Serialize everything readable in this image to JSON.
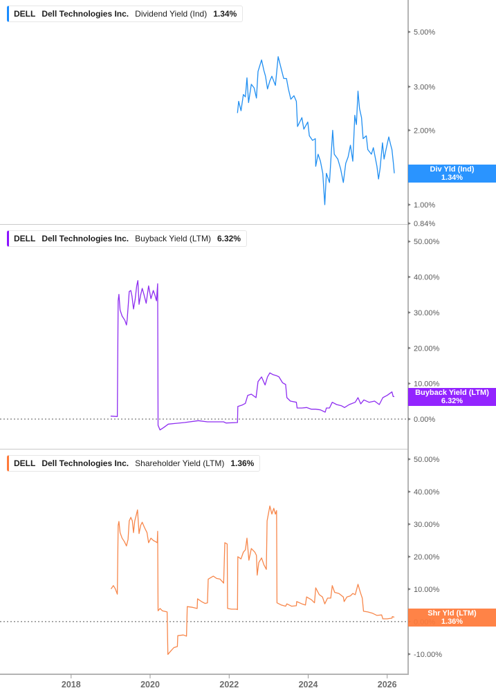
{
  "x_axis": {
    "ticks": [
      {
        "year": 2018,
        "label": "2018"
      },
      {
        "year": 2020,
        "label": "2020"
      },
      {
        "year": 2022,
        "label": "2022"
      },
      {
        "year": 2024,
        "label": "2024"
      },
      {
        "year": 2026,
        "label": "2026"
      }
    ]
  },
  "panels": [
    {
      "color": "#1a8cff",
      "legend": {
        "ticker": "DELL",
        "company": "Dell Technologies Inc.",
        "metric": "Dividend Yield (Ind)",
        "value": "1.34%"
      },
      "tag": {
        "label": "Div Yld (Ind)",
        "value": "1.34%"
      }
    },
    {
      "color": "#8b14ff",
      "legend": {
        "ticker": "DELL",
        "company": "Dell Technologies Inc.",
        "metric": "Buyback Yield (LTM)",
        "value": "6.32%"
      },
      "tag": {
        "label": "Buyback Yield (LTM)",
        "value": "6.32%"
      }
    },
    {
      "color": "#ff7a3a",
      "legend": {
        "ticker": "DELL",
        "company": "Dell Technologies Inc.",
        "metric": "Shareholder Yield (LTM)",
        "value": "1.36%"
      },
      "tag": {
        "label": "Shr Yld (LTM)",
        "value": "1.36%"
      }
    }
  ],
  "chart_data": [
    {
      "type": "line",
      "title": "DELL Dell Technologies Inc. Dividend Yield (Ind)",
      "series_name": "Div Yld (Ind)",
      "last_value": 1.34,
      "line_color": "#1f8ef1",
      "yscale": "log",
      "xlim": [
        2016.2,
        2026.53
      ],
      "ylim": [
        0.835,
        6.73
      ],
      "zero_line": false,
      "yticks": [
        {
          "value": 5,
          "label": "5.00%"
        },
        {
          "value": 3,
          "label": "3.00%"
        },
        {
          "value": 2,
          "label": "2.00%"
        },
        {
          "value": 1,
          "label": "1.00%"
        },
        {
          "value": 0.84,
          "label": "0.84%"
        }
      ],
      "points": [
        [
          2022.21,
          2.35
        ],
        [
          2022.24,
          2.62
        ],
        [
          2022.3,
          2.4
        ],
        [
          2022.36,
          2.79
        ],
        [
          2022.41,
          2.73
        ],
        [
          2022.45,
          3.26
        ],
        [
          2022.49,
          2.59
        ],
        [
          2022.56,
          3.07
        ],
        [
          2022.63,
          2.97
        ],
        [
          2022.69,
          2.7
        ],
        [
          2022.73,
          3.46
        ],
        [
          2022.82,
          3.85
        ],
        [
          2022.88,
          3.49
        ],
        [
          2022.92,
          3.31
        ],
        [
          2022.97,
          2.94
        ],
        [
          2023.03,
          3.17
        ],
        [
          2023.08,
          3.31
        ],
        [
          2023.17,
          3.04
        ],
        [
          2023.24,
          3.97
        ],
        [
          2023.32,
          3.53
        ],
        [
          2023.38,
          3.24
        ],
        [
          2023.45,
          3.24
        ],
        [
          2023.5,
          2.94
        ],
        [
          2023.56,
          2.67
        ],
        [
          2023.64,
          2.76
        ],
        [
          2023.7,
          2.62
        ],
        [
          2023.73,
          2.07
        ],
        [
          2023.84,
          2.25
        ],
        [
          2023.89,
          2.02
        ],
        [
          2023.99,
          2.16
        ],
        [
          2024.03,
          1.9
        ],
        [
          2024.11,
          1.82
        ],
        [
          2024.18,
          1.85
        ],
        [
          2024.19,
          1.43
        ],
        [
          2024.25,
          1.6
        ],
        [
          2024.31,
          1.5
        ],
        [
          2024.37,
          1.34
        ],
        [
          2024.42,
          1.0
        ],
        [
          2024.46,
          1.34
        ],
        [
          2024.54,
          1.23
        ],
        [
          2024.62,
          2.0
        ],
        [
          2024.66,
          1.6
        ],
        [
          2024.75,
          1.53
        ],
        [
          2024.82,
          1.4
        ],
        [
          2024.89,
          1.23
        ],
        [
          2024.95,
          1.47
        ],
        [
          2025.01,
          1.56
        ],
        [
          2025.07,
          1.74
        ],
        [
          2025.13,
          1.5
        ],
        [
          2025.18,
          2.3
        ],
        [
          2025.22,
          2.11
        ],
        [
          2025.26,
          2.88
        ],
        [
          2025.3,
          2.45
        ],
        [
          2025.35,
          2.25
        ],
        [
          2025.39,
          1.85
        ],
        [
          2025.47,
          1.9
        ],
        [
          2025.51,
          1.67
        ],
        [
          2025.6,
          1.6
        ],
        [
          2025.65,
          1.7
        ],
        [
          2025.74,
          1.43
        ],
        [
          2025.78,
          1.27
        ],
        [
          2025.82,
          1.4
        ],
        [
          2025.88,
          1.78
        ],
        [
          2025.92,
          1.53
        ],
        [
          2025.97,
          1.67
        ],
        [
          2026.04,
          1.88
        ],
        [
          2026.09,
          1.74
        ],
        [
          2026.12,
          1.67
        ],
        [
          2026.16,
          1.45
        ],
        [
          2026.18,
          1.34
        ]
      ]
    },
    {
      "type": "line",
      "title": "DELL Dell Technologies Inc. Buyback Yield (LTM)",
      "series_name": "Buyback Yield (LTM)",
      "last_value": 6.32,
      "line_color": "#8d2cf0",
      "yscale": "linear",
      "xlim": [
        2016.2,
        2026.53
      ],
      "ylim": [
        -8.37,
        54.9
      ],
      "zero_line": true,
      "yticks": [
        {
          "value": 50,
          "label": "50.00%"
        },
        {
          "value": 40,
          "label": "40.00%"
        },
        {
          "value": 30,
          "label": "30.00%"
        },
        {
          "value": 20,
          "label": "20.00%"
        },
        {
          "value": 10,
          "label": "10.00%"
        },
        {
          "value": 0,
          "label": "0.00%"
        }
      ],
      "points": [
        [
          2019.0,
          0.84
        ],
        [
          2019.17,
          0.72
        ],
        [
          2019.19,
          33.3
        ],
        [
          2019.21,
          35.1
        ],
        [
          2019.24,
          30.7
        ],
        [
          2019.29,
          29.0
        ],
        [
          2019.36,
          27.8
        ],
        [
          2019.4,
          26.5
        ],
        [
          2019.42,
          28.1
        ],
        [
          2019.47,
          35.9
        ],
        [
          2019.51,
          36.2
        ],
        [
          2019.54,
          34.6
        ],
        [
          2019.58,
          31.0
        ],
        [
          2019.62,
          33.6
        ],
        [
          2019.66,
          37.5
        ],
        [
          2019.69,
          39.0
        ],
        [
          2019.72,
          32.3
        ],
        [
          2019.76,
          34.9
        ],
        [
          2019.8,
          36.8
        ],
        [
          2019.84,
          35.2
        ],
        [
          2019.9,
          32.6
        ],
        [
          2019.96,
          37.5
        ],
        [
          2020.02,
          33.9
        ],
        [
          2020.08,
          36.2
        ],
        [
          2020.12,
          34.9
        ],
        [
          2020.16,
          33.3
        ],
        [
          2020.19,
          38.1
        ],
        [
          2020.2,
          -1.75
        ],
        [
          2020.25,
          -3.05
        ],
        [
          2020.34,
          -2.4
        ],
        [
          2020.46,
          -1.42
        ],
        [
          2020.87,
          -0.97
        ],
        [
          2021.22,
          -0.45
        ],
        [
          2021.45,
          -0.78
        ],
        [
          2021.86,
          -0.78
        ],
        [
          2021.92,
          -1.1
        ],
        [
          2022.21,
          -0.97
        ],
        [
          2022.22,
          3.56
        ],
        [
          2022.33,
          3.95
        ],
        [
          2022.41,
          4.42
        ],
        [
          2022.47,
          6.67
        ],
        [
          2022.56,
          7.0
        ],
        [
          2022.68,
          6.03
        ],
        [
          2022.73,
          10.56
        ],
        [
          2022.82,
          11.87
        ],
        [
          2022.91,
          9.6
        ],
        [
          2022.97,
          11.9
        ],
        [
          2023.03,
          13.0
        ],
        [
          2023.11,
          12.5
        ],
        [
          2023.2,
          12.2
        ],
        [
          2023.26,
          11.9
        ],
        [
          2023.35,
          10.25
        ],
        [
          2023.43,
          9.73
        ],
        [
          2023.46,
          6.03
        ],
        [
          2023.55,
          5.06
        ],
        [
          2023.7,
          4.73
        ],
        [
          2023.72,
          3.11
        ],
        [
          2023.84,
          3.11
        ],
        [
          2023.96,
          3.25
        ],
        [
          2024.08,
          2.78
        ],
        [
          2024.19,
          2.78
        ],
        [
          2024.31,
          2.59
        ],
        [
          2024.43,
          1.95
        ],
        [
          2024.46,
          3.11
        ],
        [
          2024.54,
          3.11
        ],
        [
          2024.61,
          4.73
        ],
        [
          2024.72,
          4.09
        ],
        [
          2024.84,
          3.76
        ],
        [
          2024.92,
          3.25
        ],
        [
          2025.04,
          4.09
        ],
        [
          2025.19,
          4.73
        ],
        [
          2025.26,
          6.03
        ],
        [
          2025.33,
          4.28
        ],
        [
          2025.41,
          5.39
        ],
        [
          2025.54,
          4.73
        ],
        [
          2025.68,
          5.06
        ],
        [
          2025.8,
          4.09
        ],
        [
          2025.89,
          6.03
        ],
        [
          2026.0,
          6.67
        ],
        [
          2026.12,
          7.65
        ],
        [
          2026.15,
          6.36
        ],
        [
          2026.18,
          6.32
        ]
      ]
    },
    {
      "type": "line",
      "title": "DELL Dell Technologies Inc. Shareholder Yield (LTM)",
      "series_name": "Shr Yld (LTM)",
      "last_value": 1.36,
      "line_color": "#f7864a",
      "yscale": "linear",
      "xlim": [
        2016.2,
        2026.53
      ],
      "ylim": [
        -16.2,
        53.2
      ],
      "zero_line": true,
      "yticks": [
        {
          "value": 50,
          "label": "50.00%"
        },
        {
          "value": 40,
          "label": "40.00%"
        },
        {
          "value": 30,
          "label": "30.00%"
        },
        {
          "value": 20,
          "label": "20.00%"
        },
        {
          "value": 10,
          "label": "10.00%"
        },
        {
          "value": 0,
          "label": "0.00%"
        },
        {
          "value": -10,
          "label": "-10.00%"
        }
      ],
      "points": [
        [
          2019.01,
          10.06
        ],
        [
          2019.07,
          11.1
        ],
        [
          2019.12,
          10.06
        ],
        [
          2019.17,
          8.45
        ],
        [
          2019.19,
          29.6
        ],
        [
          2019.21,
          30.85
        ],
        [
          2019.24,
          27.4
        ],
        [
          2019.29,
          25.7
        ],
        [
          2019.35,
          24.6
        ],
        [
          2019.4,
          23.3
        ],
        [
          2019.44,
          25.3
        ],
        [
          2019.47,
          31.0
        ],
        [
          2019.51,
          32.1
        ],
        [
          2019.55,
          31.0
        ],
        [
          2019.58,
          27.4
        ],
        [
          2019.61,
          31.0
        ],
        [
          2019.64,
          32.4
        ],
        [
          2019.68,
          34.4
        ],
        [
          2019.72,
          27.1
        ],
        [
          2019.76,
          29.6
        ],
        [
          2019.8,
          30.6
        ],
        [
          2019.86,
          28.9
        ],
        [
          2019.92,
          27.4
        ],
        [
          2019.96,
          24.3
        ],
        [
          2020.02,
          25.7
        ],
        [
          2020.08,
          25.0
        ],
        [
          2020.14,
          24.6
        ],
        [
          2020.18,
          24.3
        ],
        [
          2020.19,
          27.8
        ],
        [
          2020.2,
          3.34
        ],
        [
          2020.25,
          4.04
        ],
        [
          2020.31,
          3.34
        ],
        [
          2020.43,
          2.98
        ],
        [
          2020.45,
          -10.1
        ],
        [
          2020.52,
          -9.09
        ],
        [
          2020.6,
          -8.0
        ],
        [
          2020.69,
          -7.66
        ],
        [
          2020.7,
          -4.32
        ],
        [
          2020.84,
          -4.1
        ],
        [
          2020.92,
          -4.47
        ],
        [
          2020.94,
          4.62
        ],
        [
          2021.07,
          4.4
        ],
        [
          2021.19,
          4.04
        ],
        [
          2021.2,
          7.02
        ],
        [
          2021.3,
          6.17
        ],
        [
          2021.39,
          5.6
        ],
        [
          2021.45,
          5.8
        ],
        [
          2021.47,
          13.1
        ],
        [
          2021.6,
          14.0
        ],
        [
          2021.68,
          13.3
        ],
        [
          2021.77,
          13.1
        ],
        [
          2021.86,
          11.85
        ],
        [
          2021.89,
          24.3
        ],
        [
          2021.95,
          23.9
        ],
        [
          2021.96,
          4.04
        ],
        [
          2022.06,
          3.83
        ],
        [
          2022.18,
          3.83
        ],
        [
          2022.21,
          3.7
        ],
        [
          2022.22,
          20.0
        ],
        [
          2022.3,
          19.3
        ],
        [
          2022.36,
          21.4
        ],
        [
          2022.41,
          22.1
        ],
        [
          2022.45,
          25.7
        ],
        [
          2022.5,
          18.9
        ],
        [
          2022.56,
          22.5
        ],
        [
          2022.65,
          21.4
        ],
        [
          2022.69,
          20.4
        ],
        [
          2022.71,
          14.3
        ],
        [
          2022.75,
          18.2
        ],
        [
          2022.82,
          19.6
        ],
        [
          2022.88,
          17.5
        ],
        [
          2022.94,
          16.1
        ],
        [
          2022.96,
          31.0
        ],
        [
          2023.03,
          35.6
        ],
        [
          2023.08,
          33.1
        ],
        [
          2023.13,
          34.9
        ],
        [
          2023.17,
          33.1
        ],
        [
          2023.2,
          34.2
        ],
        [
          2023.21,
          5.8
        ],
        [
          2023.32,
          5.1
        ],
        [
          2023.43,
          4.74
        ],
        [
          2023.46,
          5.47
        ],
        [
          2023.58,
          4.74
        ],
        [
          2023.7,
          4.9
        ],
        [
          2023.71,
          6.17
        ],
        [
          2023.84,
          5.47
        ],
        [
          2023.93,
          5.1
        ],
        [
          2023.96,
          7.6
        ],
        [
          2024.08,
          6.74
        ],
        [
          2024.16,
          5.8
        ],
        [
          2024.19,
          10.4
        ],
        [
          2024.28,
          8.3
        ],
        [
          2024.36,
          7.6
        ],
        [
          2024.42,
          5.47
        ],
        [
          2024.49,
          7.23
        ],
        [
          2024.57,
          7.23
        ],
        [
          2024.61,
          11.1
        ],
        [
          2024.67,
          9.0
        ],
        [
          2024.78,
          8.66
        ],
        [
          2024.89,
          7.6
        ],
        [
          2024.91,
          6.17
        ],
        [
          2024.98,
          7.6
        ],
        [
          2025.07,
          7.94
        ],
        [
          2025.13,
          8.66
        ],
        [
          2025.19,
          8.3
        ],
        [
          2025.26,
          11.5
        ],
        [
          2025.32,
          9.0
        ],
        [
          2025.37,
          7.23
        ],
        [
          2025.4,
          3.19
        ],
        [
          2025.51,
          2.98
        ],
        [
          2025.62,
          2.62
        ],
        [
          2025.74,
          1.91
        ],
        [
          2025.86,
          2.06
        ],
        [
          2025.89,
          0.85
        ],
        [
          2026.0,
          0.85
        ],
        [
          2026.12,
          1.06
        ],
        [
          2026.13,
          1.55
        ],
        [
          2026.18,
          1.36
        ]
      ]
    }
  ]
}
